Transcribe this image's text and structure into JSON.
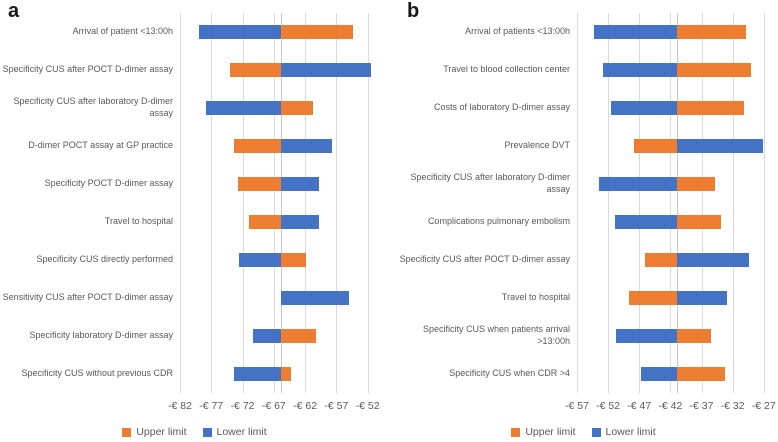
{
  "colors": {
    "upper_hex": "#ED7D31",
    "lower_hex": "#4472C4",
    "gridline_hex": "#D9D9D9",
    "baseline_hex": "#C9C9C9",
    "text_hex": "#595959",
    "panel_letter_hex": "#1A1A1A"
  },
  "chart_data": [
    {
      "type": "bar",
      "subtype": "tornado",
      "orientation": "horizontal",
      "panel_label": "a",
      "title": "",
      "xlabel": "",
      "ylabel": "",
      "currency": "EUR",
      "axis_min": -82,
      "axis_max": -50.5,
      "base_value": -65.8,
      "grid": "vertical",
      "legend_position": "bottom",
      "legend_upper_label": "Upper limit",
      "legend_lower_label": "Lower limit",
      "ticks": [
        {
          "value": -82,
          "label": "-€ 82"
        },
        {
          "value": -77,
          "label": "-€ 77"
        },
        {
          "value": -72,
          "label": "-€ 72"
        },
        {
          "value": -67,
          "label": "-€ 67"
        },
        {
          "value": -62,
          "label": "-€ 62"
        },
        {
          "value": -57,
          "label": "-€ 57"
        },
        {
          "value": -52,
          "label": "-€ 52"
        }
      ],
      "rows": [
        {
          "label": "Arrival of patient <13:00h",
          "lower": -79.0,
          "upper": -54.4
        },
        {
          "label": "Specificity CUS after POCT D-dimer assay",
          "lower": -51.5,
          "upper": -74.0
        },
        {
          "label": "Specificity CUS after laboratory D-dimer assay",
          "lower": -77.9,
          "upper": -60.7
        },
        {
          "label": "D-dimer POCT assay at GP practice",
          "lower": -57.7,
          "upper": -73.3
        },
        {
          "label": "Specificity POCT D-dimer assay",
          "lower": -59.8,
          "upper": -72.8
        },
        {
          "label": "Travel to hospital",
          "lower": -59.8,
          "upper": -71.0
        },
        {
          "label": "Specificity CUS directly performed",
          "lower": -72.6,
          "upper": -61.9
        },
        {
          "label": "Sensitivity CUS after POCT D-dimer assay",
          "lower": -54.9,
          "upper": -65.8
        },
        {
          "label": "Specificity laboratory D-dimer assay",
          "lower": -70.3,
          "upper": -60.3
        },
        {
          "label": "Specificity CUS without previous CDR",
          "lower": -73.3,
          "upper": -64.3
        }
      ]
    },
    {
      "type": "bar",
      "subtype": "tornado",
      "orientation": "horizontal",
      "panel_label": "b",
      "title": "",
      "xlabel": "",
      "ylabel": "",
      "currency": "EUR",
      "axis_min": -57,
      "axis_max": -26,
      "base_value": -41.0,
      "grid": "vertical",
      "legend_position": "bottom",
      "legend_upper_label": "Upper limit",
      "legend_lower_label": "Lower limit",
      "ticks": [
        {
          "value": -57,
          "label": "-€ 57"
        },
        {
          "value": -52,
          "label": "-€ 52"
        },
        {
          "value": -47,
          "label": "-€ 47"
        },
        {
          "value": -42,
          "label": "-€ 42"
        },
        {
          "value": -37,
          "label": "-€ 37"
        },
        {
          "value": -32,
          "label": "-€ 32"
        },
        {
          "value": -27,
          "label": "-€ 27"
        }
      ],
      "rows": [
        {
          "label": "Arrival of patients <13:00h",
          "lower": -54.3,
          "upper": -29.9
        },
        {
          "label": "Travel to blood collection center",
          "lower": -52.9,
          "upper": -29.0
        },
        {
          "label": "Costs of laboratory D-dimer assay",
          "lower": -51.5,
          "upper": -30.2
        },
        {
          "label": "Prevalence DVT",
          "lower": -27.1,
          "upper": -47.9
        },
        {
          "label": "Specificity CUS after laboratory D-dimer assay",
          "lower": -53.4,
          "upper": -34.8
        },
        {
          "label": "Complications pulmonary embolism",
          "lower": -50.9,
          "upper": -33.9
        },
        {
          "label": "Specificity CUS after POCT D-dimer assay",
          "lower": -29.4,
          "upper": -46.1
        },
        {
          "label": "Travel to hospital",
          "lower": -32.9,
          "upper": -48.7
        },
        {
          "label": "Specificity CUS when patients arrival >13:00h",
          "lower": -50.7,
          "upper": -35.4
        },
        {
          "label": "Specificity CUS  when CDR >4",
          "lower": -46.8,
          "upper": -33.2
        }
      ]
    }
  ]
}
